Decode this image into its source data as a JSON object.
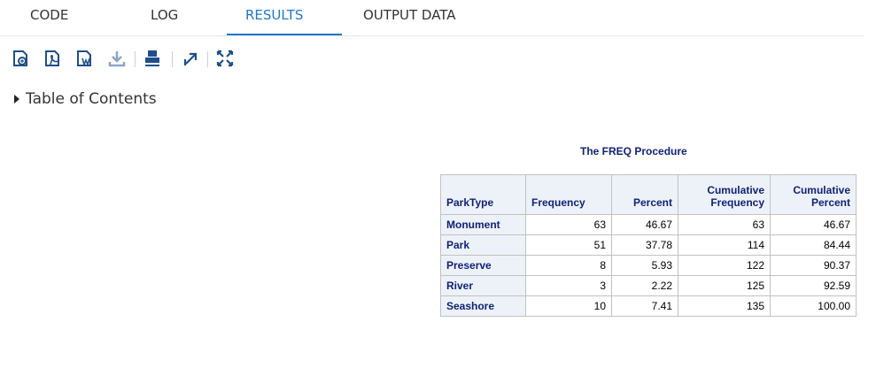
{
  "tabs": [
    {
      "label": "CODE"
    },
    {
      "label": "LOG"
    },
    {
      "label": "RESULTS",
      "active": true
    },
    {
      "label": "OUTPUT DATA"
    }
  ],
  "toolbar": {
    "icons": [
      "html-icon",
      "pdf-icon",
      "rtf-icon",
      "download-icon",
      "print-icon",
      "open-new-window-icon",
      "expand-icon"
    ]
  },
  "toc": {
    "label": "Table of Contents"
  },
  "results": {
    "title": "The FREQ Procedure",
    "columns": [
      "ParkType",
      "Frequency",
      "Percent",
      "Cumulative Frequency",
      "Cumulative Percent"
    ],
    "column_lines": [
      [
        "ParkType"
      ],
      [
        "Frequency"
      ],
      [
        "Percent"
      ],
      [
        "Cumulative",
        "Frequency"
      ],
      [
        "Cumulative",
        "Percent"
      ]
    ],
    "rows": [
      [
        "Monument",
        "63",
        "46.67",
        "63",
        "46.67"
      ],
      [
        "Park",
        "51",
        "37.78",
        "114",
        "84.44"
      ],
      [
        "Preserve",
        "8",
        "5.93",
        "122",
        "90.37"
      ],
      [
        "River",
        "3",
        "2.22",
        "125",
        "92.59"
      ],
      [
        "Seashore",
        "10",
        "7.41",
        "135",
        "100.00"
      ]
    ]
  },
  "colors": {
    "accent": "#1f77c9",
    "header_text": "#112277",
    "header_bg": "#edf2f9",
    "toolbar_icon": "#1f4e8c"
  }
}
